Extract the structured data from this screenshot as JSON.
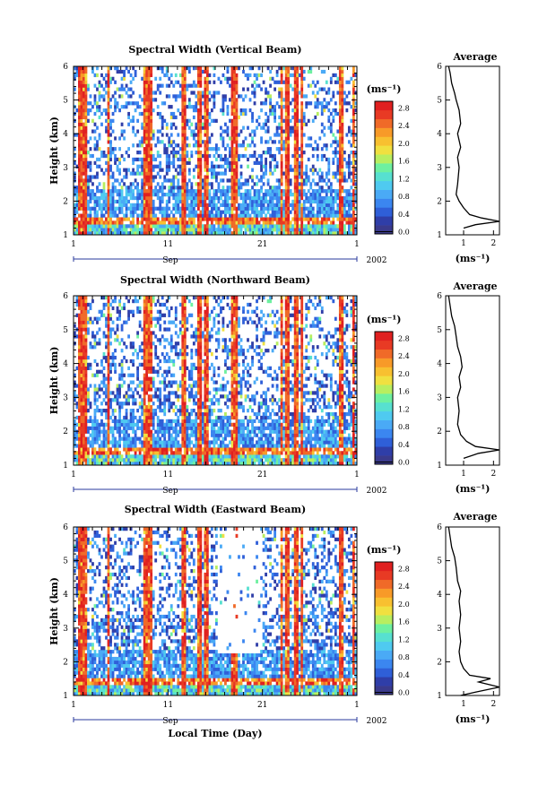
{
  "chart_data": [
    {
      "type": "heatmap",
      "title": "Spectral Width (Vertical Beam)",
      "ylabel": "Height (km)",
      "y_ticks": [
        "1",
        "2",
        "3",
        "4",
        "5",
        "6"
      ],
      "ylim": [
        1,
        6
      ],
      "x_ticks": [
        "1",
        "11",
        "21",
        "1"
      ],
      "month_label": "Sep",
      "year_label": "2002",
      "colorbar": {
        "unit": "(ms⁻¹)",
        "ticks": [
          "0.0",
          "0.4",
          "0.8",
          "1.2",
          "1.6",
          "2.0",
          "2.4",
          "2.8"
        ],
        "range": [
          0.0,
          3.0
        ]
      },
      "average": {
        "title": "Average",
        "xlabel": "(ms⁻¹)",
        "x_ticks": [
          "1",
          "2"
        ],
        "xlim": [
          0.4,
          2.2
        ],
        "profile": [
          [
            1.2,
            1.0
          ],
          [
            1.3,
            1.4
          ],
          [
            1.4,
            2.2
          ],
          [
            1.5,
            1.6
          ],
          [
            1.6,
            1.2
          ],
          [
            1.8,
            1.0
          ],
          [
            2.0,
            0.85
          ],
          [
            2.2,
            0.75
          ],
          [
            2.5,
            0.8
          ],
          [
            3.0,
            0.85
          ],
          [
            3.3,
            0.8
          ],
          [
            3.6,
            0.9
          ],
          [
            4.0,
            0.8
          ],
          [
            4.3,
            0.9
          ],
          [
            4.7,
            0.85
          ],
          [
            5.0,
            0.75
          ],
          [
            5.2,
            0.7
          ],
          [
            5.5,
            0.6
          ],
          [
            5.8,
            0.55
          ],
          [
            6.0,
            0.5
          ]
        ]
      }
    },
    {
      "type": "heatmap",
      "title": "Spectral Width (Northward Beam)",
      "ylabel": "Height (km)",
      "y_ticks": [
        "1",
        "2",
        "3",
        "4",
        "5",
        "6"
      ],
      "ylim": [
        1,
        6
      ],
      "x_ticks": [
        "1",
        "11",
        "21",
        "1"
      ],
      "month_label": "Sep",
      "year_label": "2002",
      "colorbar": {
        "unit": "(ms⁻¹)",
        "ticks": [
          "0.0",
          "0.4",
          "0.8",
          "1.2",
          "1.6",
          "2.0",
          "2.4",
          "2.8"
        ],
        "range": [
          0.0,
          3.0
        ]
      },
      "average": {
        "title": "Average",
        "xlabel": "(ms⁻¹)",
        "x_ticks": [
          "1",
          "2"
        ],
        "xlim": [
          0.4,
          2.2
        ],
        "profile": [
          [
            1.2,
            1.0
          ],
          [
            1.35,
            1.5
          ],
          [
            1.45,
            2.2
          ],
          [
            1.55,
            1.4
          ],
          [
            1.7,
            1.1
          ],
          [
            1.9,
            0.9
          ],
          [
            2.2,
            0.8
          ],
          [
            2.6,
            0.85
          ],
          [
            3.0,
            0.8
          ],
          [
            3.3,
            0.9
          ],
          [
            3.6,
            0.85
          ],
          [
            3.9,
            0.95
          ],
          [
            4.2,
            0.9
          ],
          [
            4.5,
            0.8
          ],
          [
            4.8,
            0.75
          ],
          [
            5.1,
            0.7
          ],
          [
            5.4,
            0.6
          ],
          [
            5.7,
            0.55
          ],
          [
            6.0,
            0.5
          ]
        ]
      }
    },
    {
      "type": "heatmap",
      "title": "Spectral Width (Eastward Beam)",
      "ylabel": "Height (km)",
      "xlabel": "Local Time (Day)",
      "y_ticks": [
        "1",
        "2",
        "3",
        "4",
        "5",
        "6"
      ],
      "ylim": [
        1,
        6
      ],
      "x_ticks": [
        "1",
        "11",
        "21",
        "1"
      ],
      "month_label": "Sep",
      "year_label": "2002",
      "colorbar": {
        "unit": "(ms⁻¹)",
        "ticks": [
          "0.0",
          "0.4",
          "0.8",
          "1.2",
          "1.6",
          "2.0",
          "2.4",
          "2.8"
        ],
        "range": [
          0.0,
          3.0
        ]
      },
      "average": {
        "title": "Average",
        "xlabel": "(ms⁻¹)",
        "x_ticks": [
          "1",
          "2"
        ],
        "xlim": [
          0.4,
          2.2
        ],
        "profile": [
          [
            1.0,
            0.9
          ],
          [
            1.1,
            1.4
          ],
          [
            1.25,
            2.2
          ],
          [
            1.4,
            1.5
          ],
          [
            1.5,
            1.9
          ],
          [
            1.6,
            1.2
          ],
          [
            1.8,
            1.0
          ],
          [
            2.0,
            0.9
          ],
          [
            2.3,
            0.85
          ],
          [
            2.6,
            0.9
          ],
          [
            3.0,
            0.85
          ],
          [
            3.4,
            0.9
          ],
          [
            3.8,
            0.85
          ],
          [
            4.1,
            0.9
          ],
          [
            4.4,
            0.8
          ],
          [
            4.8,
            0.75
          ],
          [
            5.1,
            0.7
          ],
          [
            5.4,
            0.6
          ],
          [
            5.7,
            0.55
          ],
          [
            6.0,
            0.5
          ]
        ]
      }
    }
  ],
  "colors": [
    "#3a3a8c",
    "#2f3ea8",
    "#2f5fd8",
    "#3b86f0",
    "#4aaaf6",
    "#4fcaf0",
    "#57e0d0",
    "#6ef0a0",
    "#b8ee60",
    "#f0e040",
    "#f8c030",
    "#f89a28",
    "#f06a28",
    "#e83a24",
    "#e02020"
  ]
}
